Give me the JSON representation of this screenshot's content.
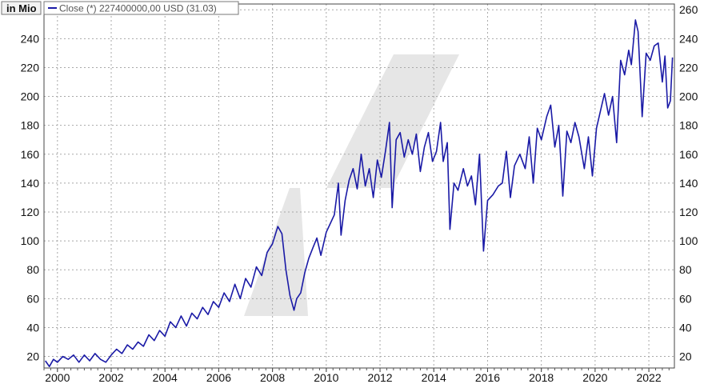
{
  "chart_data": {
    "type": "line",
    "unit_label": "in Mio",
    "legend": {
      "label": "Close (*) 227400000,00 USD (31.03)",
      "color": "#1a1aa6",
      "placement": "top-left"
    },
    "xlim": [
      1999.5,
      2022.95
    ],
    "ylim": [
      12,
      264
    ],
    "x_ticks": [
      2000,
      2002,
      2004,
      2006,
      2008,
      2010,
      2012,
      2014,
      2016,
      2018,
      2020,
      2022
    ],
    "x_tick_labels": [
      "2000",
      "2002",
      "2004",
      "2006",
      "2008",
      "2010",
      "2012",
      "2014",
      "2016",
      "2018",
      "2020",
      "2022"
    ],
    "y_ticks": [
      20,
      40,
      60,
      80,
      100,
      120,
      140,
      160,
      180,
      200,
      220,
      240,
      260
    ],
    "y_tick_labels": [
      "20",
      "40",
      "60",
      "80",
      "100",
      "120",
      "140",
      "160",
      "180",
      "200",
      "220",
      "240",
      "260"
    ],
    "grid": true,
    "x_minor_ticks": 4,
    "series": [
      {
        "color": "#1a1aa6",
        "points": [
          [
            1999.55,
            17
          ],
          [
            1999.7,
            13
          ],
          [
            1999.85,
            18
          ],
          [
            2000.0,
            16
          ],
          [
            2000.2,
            20
          ],
          [
            2000.4,
            18
          ],
          [
            2000.6,
            21
          ],
          [
            2000.8,
            16
          ],
          [
            2001.0,
            21
          ],
          [
            2001.2,
            17
          ],
          [
            2001.4,
            22
          ],
          [
            2001.6,
            18
          ],
          [
            2001.8,
            16
          ],
          [
            2002.0,
            21
          ],
          [
            2002.2,
            25
          ],
          [
            2002.4,
            22
          ],
          [
            2002.6,
            28
          ],
          [
            2002.8,
            25
          ],
          [
            2003.0,
            30
          ],
          [
            2003.2,
            27
          ],
          [
            2003.4,
            35
          ],
          [
            2003.6,
            31
          ],
          [
            2003.8,
            38
          ],
          [
            2004.0,
            34
          ],
          [
            2004.2,
            44
          ],
          [
            2004.4,
            40
          ],
          [
            2004.6,
            48
          ],
          [
            2004.8,
            41
          ],
          [
            2005.0,
            50
          ],
          [
            2005.2,
            46
          ],
          [
            2005.4,
            54
          ],
          [
            2005.6,
            49
          ],
          [
            2005.8,
            58
          ],
          [
            2006.0,
            54
          ],
          [
            2006.2,
            64
          ],
          [
            2006.4,
            58
          ],
          [
            2006.6,
            70
          ],
          [
            2006.8,
            60
          ],
          [
            2007.0,
            74
          ],
          [
            2007.2,
            68
          ],
          [
            2007.4,
            82
          ],
          [
            2007.6,
            76
          ],
          [
            2007.8,
            92
          ],
          [
            2008.0,
            98
          ],
          [
            2008.2,
            110
          ],
          [
            2008.35,
            105
          ],
          [
            2008.5,
            80
          ],
          [
            2008.65,
            62
          ],
          [
            2008.8,
            52
          ],
          [
            2008.9,
            60
          ],
          [
            2009.05,
            64
          ],
          [
            2009.2,
            78
          ],
          [
            2009.35,
            88
          ],
          [
            2009.5,
            95
          ],
          [
            2009.65,
            102
          ],
          [
            2009.8,
            90
          ],
          [
            2010.0,
            106
          ],
          [
            2010.15,
            112
          ],
          [
            2010.3,
            118
          ],
          [
            2010.45,
            140
          ],
          [
            2010.55,
            104
          ],
          [
            2010.7,
            128
          ],
          [
            2010.85,
            142
          ],
          [
            2011.0,
            150
          ],
          [
            2011.15,
            136
          ],
          [
            2011.3,
            160
          ],
          [
            2011.45,
            138
          ],
          [
            2011.6,
            150
          ],
          [
            2011.75,
            130
          ],
          [
            2011.9,
            156
          ],
          [
            2012.05,
            144
          ],
          [
            2012.2,
            162
          ],
          [
            2012.35,
            182
          ],
          [
            2012.45,
            123
          ],
          [
            2012.6,
            170
          ],
          [
            2012.75,
            175
          ],
          [
            2012.9,
            158
          ],
          [
            2013.05,
            170
          ],
          [
            2013.2,
            160
          ],
          [
            2013.35,
            174
          ],
          [
            2013.5,
            148
          ],
          [
            2013.65,
            165
          ],
          [
            2013.8,
            175
          ],
          [
            2013.95,
            155
          ],
          [
            2014.1,
            162
          ],
          [
            2014.25,
            182
          ],
          [
            2014.35,
            155
          ],
          [
            2014.5,
            168
          ],
          [
            2014.6,
            108
          ],
          [
            2014.75,
            140
          ],
          [
            2014.9,
            135
          ],
          [
            2015.1,
            150
          ],
          [
            2015.25,
            138
          ],
          [
            2015.4,
            145
          ],
          [
            2015.55,
            125
          ],
          [
            2015.7,
            160
          ],
          [
            2015.85,
            93
          ],
          [
            2016.0,
            128
          ],
          [
            2016.2,
            132
          ],
          [
            2016.4,
            138
          ],
          [
            2016.55,
            140
          ],
          [
            2016.7,
            162
          ],
          [
            2016.85,
            130
          ],
          [
            2017.0,
            152
          ],
          [
            2017.2,
            160
          ],
          [
            2017.4,
            150
          ],
          [
            2017.55,
            172
          ],
          [
            2017.7,
            140
          ],
          [
            2017.85,
            178
          ],
          [
            2018.0,
            170
          ],
          [
            2018.2,
            186
          ],
          [
            2018.35,
            194
          ],
          [
            2018.5,
            165
          ],
          [
            2018.65,
            180
          ],
          [
            2018.8,
            131
          ],
          [
            2018.95,
            176
          ],
          [
            2019.1,
            168
          ],
          [
            2019.25,
            182
          ],
          [
            2019.4,
            172
          ],
          [
            2019.6,
            150
          ],
          [
            2019.75,
            172
          ],
          [
            2019.9,
            145
          ],
          [
            2020.05,
            178
          ],
          [
            2020.2,
            190
          ],
          [
            2020.35,
            202
          ],
          [
            2020.5,
            187
          ],
          [
            2020.65,
            200
          ],
          [
            2020.8,
            168
          ],
          [
            2020.95,
            225
          ],
          [
            2021.1,
            215
          ],
          [
            2021.25,
            232
          ],
          [
            2021.35,
            222
          ],
          [
            2021.5,
            253
          ],
          [
            2021.6,
            245
          ],
          [
            2021.75,
            186
          ],
          [
            2021.9,
            230
          ],
          [
            2022.05,
            225
          ],
          [
            2022.2,
            235
          ],
          [
            2022.35,
            237
          ],
          [
            2022.5,
            210
          ],
          [
            2022.6,
            228
          ],
          [
            2022.7,
            192
          ],
          [
            2022.8,
            197
          ],
          [
            2022.88,
            227
          ]
        ]
      }
    ]
  }
}
